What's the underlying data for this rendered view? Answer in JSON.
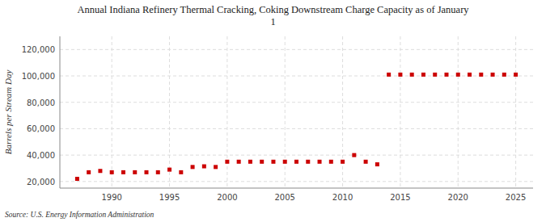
{
  "chart_data": {
    "type": "scatter",
    "title": "Annual Indiana Refinery Thermal Cracking, Coking Downstream Charge Capacity as of January\n1",
    "y_label": "Barrels per Stream Day",
    "annotations": [
      "Source: U.S. Energy Information Administration"
    ],
    "x": [
      1987,
      1988,
      1989,
      1990,
      1991,
      1992,
      1993,
      1994,
      1995,
      1996,
      1997,
      1998,
      1999,
      2000,
      2001,
      2002,
      2003,
      2004,
      2005,
      2006,
      2007,
      2008,
      2009,
      2010,
      2011,
      2012,
      2013,
      2014,
      2015,
      2016,
      2017,
      2018,
      2019,
      2020,
      2021,
      2022,
      2023,
      2024,
      2025
    ],
    "values": [
      22000,
      27000,
      28000,
      27000,
      27000,
      27000,
      27000,
      27000,
      29000,
      27000,
      31000,
      31500,
      31000,
      35000,
      35000,
      35000,
      35000,
      35000,
      35000,
      35000,
      35000,
      35000,
      35000,
      35000,
      40000,
      35000,
      33000,
      101000,
      101000,
      101000,
      101000,
      101000,
      101000,
      101000,
      101000,
      101000,
      101000,
      101000,
      101000
    ],
    "color": "#cc0000",
    "marker": "square",
    "xlim": [
      1985.5,
      2026.5
    ],
    "xticks": [
      1990,
      1995,
      2000,
      2005,
      2010,
      2015,
      2020,
      2025
    ],
    "ylim": [
      15000,
      130000
    ],
    "yticks": [
      {
        "value": 20000,
        "label": "20,000"
      },
      {
        "value": 40000,
        "label": "40,000"
      },
      {
        "value": 60000,
        "label": "60,000"
      },
      {
        "value": 80000,
        "label": "80,000"
      },
      {
        "value": 100000,
        "label": "100,000"
      },
      {
        "value": 120000,
        "label": "120,000"
      }
    ],
    "grid": true
  }
}
